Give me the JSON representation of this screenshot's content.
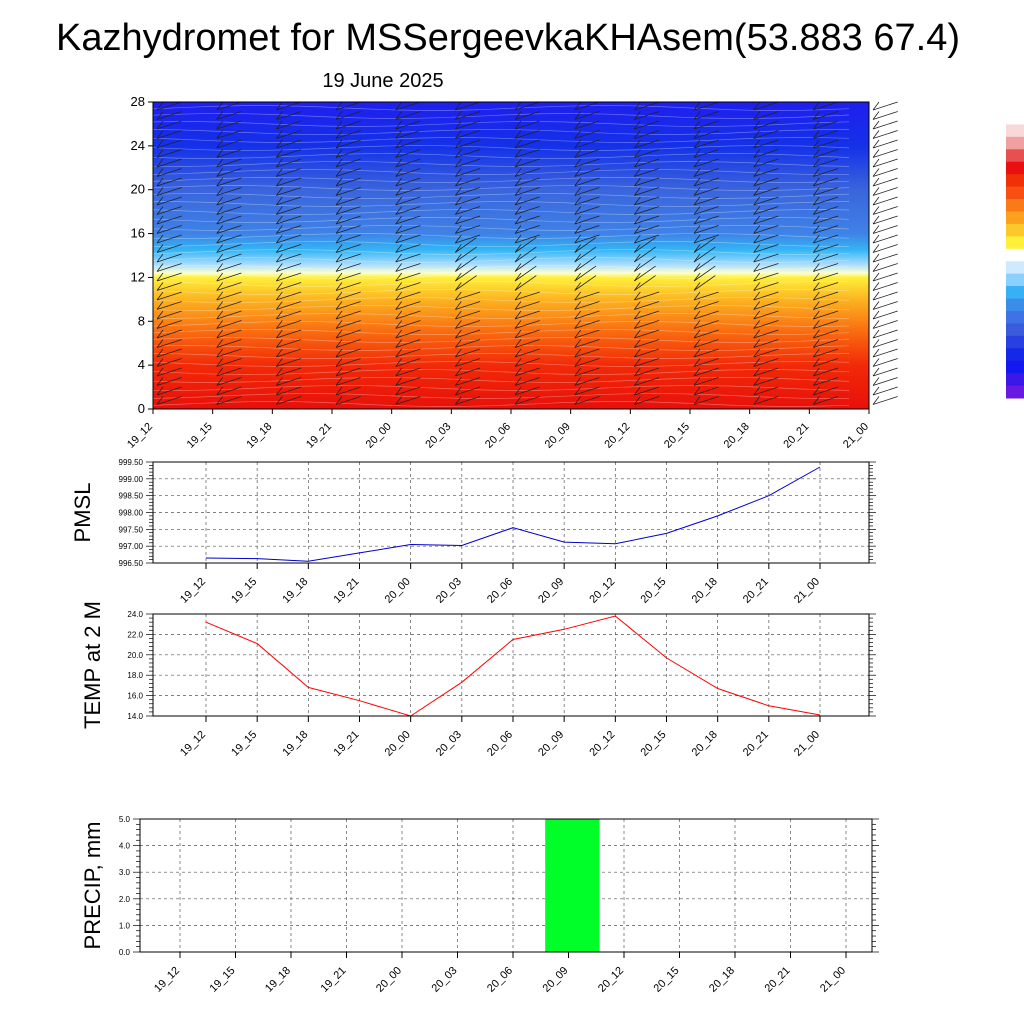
{
  "title": "Kazhydromet for MSSergeevkaKHAsem(53.883 67.4)",
  "date_label": "19 June 2025",
  "time_labels": [
    "19_12",
    "19_15",
    "19_18",
    "19_21",
    "20_00",
    "20_03",
    "20_06",
    "20_09",
    "20_12",
    "20_15",
    "20_18",
    "20_21",
    "21_00"
  ],
  "chart_data": [
    {
      "id": "cross-section",
      "type": "heatmap",
      "title": "",
      "xlabel": "",
      "ylabel": "",
      "y_ticks": [
        0,
        4,
        8,
        12,
        16,
        20,
        24,
        28
      ],
      "ylim": [
        0,
        28
      ],
      "color_bands": [
        {
          "y": 0,
          "color": "#e8100a"
        },
        {
          "y": 4,
          "color": "#f22a08"
        },
        {
          "y": 7,
          "color": "#f96a10"
        },
        {
          "y": 10,
          "color": "#fcb421"
        },
        {
          "y": 12,
          "color": "#fff03a"
        },
        {
          "y": 12.4,
          "color": "#fcffd0"
        },
        {
          "y": 13.2,
          "color": "#a8dcff"
        },
        {
          "y": 14.5,
          "color": "#33b6f5"
        },
        {
          "y": 16,
          "color": "#3f82e6"
        },
        {
          "y": 20,
          "color": "#3a64dc"
        },
        {
          "y": 24,
          "color": "#1431e8"
        },
        {
          "y": 28,
          "color": "#1f1fee"
        }
      ],
      "wind_barbs": true
    },
    {
      "id": "pmsl",
      "type": "line",
      "ylabel": "PMSL",
      "y_ticks": [
        "996.50",
        "997.00",
        "997.50",
        "998.00",
        "998.50",
        "999.00",
        "999.50"
      ],
      "ylim": [
        996.5,
        999.5
      ],
      "values": [
        996.65,
        996.63,
        996.55,
        996.8,
        997.05,
        997.02,
        997.55,
        997.12,
        997.07,
        997.38,
        997.9,
        998.5,
        999.35
      ],
      "color": "#0000cc",
      "grid": true
    },
    {
      "id": "temp",
      "type": "line",
      "ylabel": "TEMP at 2 M",
      "y_ticks": [
        "14.0",
        "16.0",
        "18.0",
        "20.0",
        "22.0",
        "24.0"
      ],
      "ylim": [
        14,
        24
      ],
      "values": [
        23.2,
        21.1,
        16.8,
        15.5,
        14.0,
        17.3,
        21.5,
        22.5,
        23.8,
        19.7,
        16.7,
        15.0,
        14.1
      ],
      "color": "#ff0000",
      "grid": true
    },
    {
      "id": "precip",
      "type": "bar",
      "ylabel": "PRECIP, mm",
      "y_ticks": [
        "0.0",
        "1.0",
        "2.0",
        "3.0",
        "4.0",
        "5.0"
      ],
      "ylim": [
        0,
        5
      ],
      "values": [
        0,
        0,
        0,
        0,
        0,
        0,
        0,
        5.0,
        0,
        0,
        0,
        0,
        0
      ],
      "color": "#00ff28",
      "grid": true
    }
  ],
  "colorbar": {
    "colors": [
      "#ffffff",
      "#f8d8d8",
      "#f0a0a0",
      "#e85050",
      "#e81010",
      "#f03008",
      "#f85010",
      "#fa7a18",
      "#fca020",
      "#fdc82a",
      "#fff03a",
      "#ffffff",
      "#cfeaff",
      "#8cd0ff",
      "#38b0f5",
      "#3a8ee8",
      "#3f72e4",
      "#3a5cdc",
      "#2840e0",
      "#1428e8",
      "#1418f0",
      "#3a18e8",
      "#6a1ae0"
    ]
  }
}
